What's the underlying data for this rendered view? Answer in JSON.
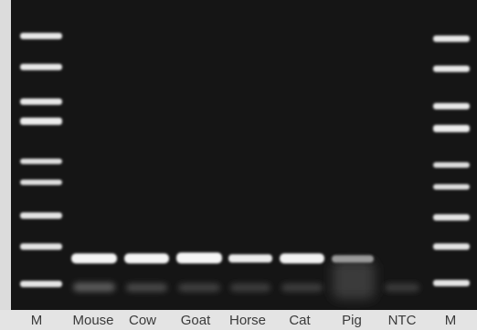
{
  "gel": {
    "background_color": "#151515",
    "band_color": "#ffffff",
    "lanes": [
      {
        "label": "M"
      },
      {
        "label": "Mouse"
      },
      {
        "label": "Cow"
      },
      {
        "label": "Goat"
      },
      {
        "label": "Horse"
      },
      {
        "label": "Cat"
      },
      {
        "label": "Pig"
      },
      {
        "label": "NTC"
      },
      {
        "label": "M"
      }
    ]
  }
}
